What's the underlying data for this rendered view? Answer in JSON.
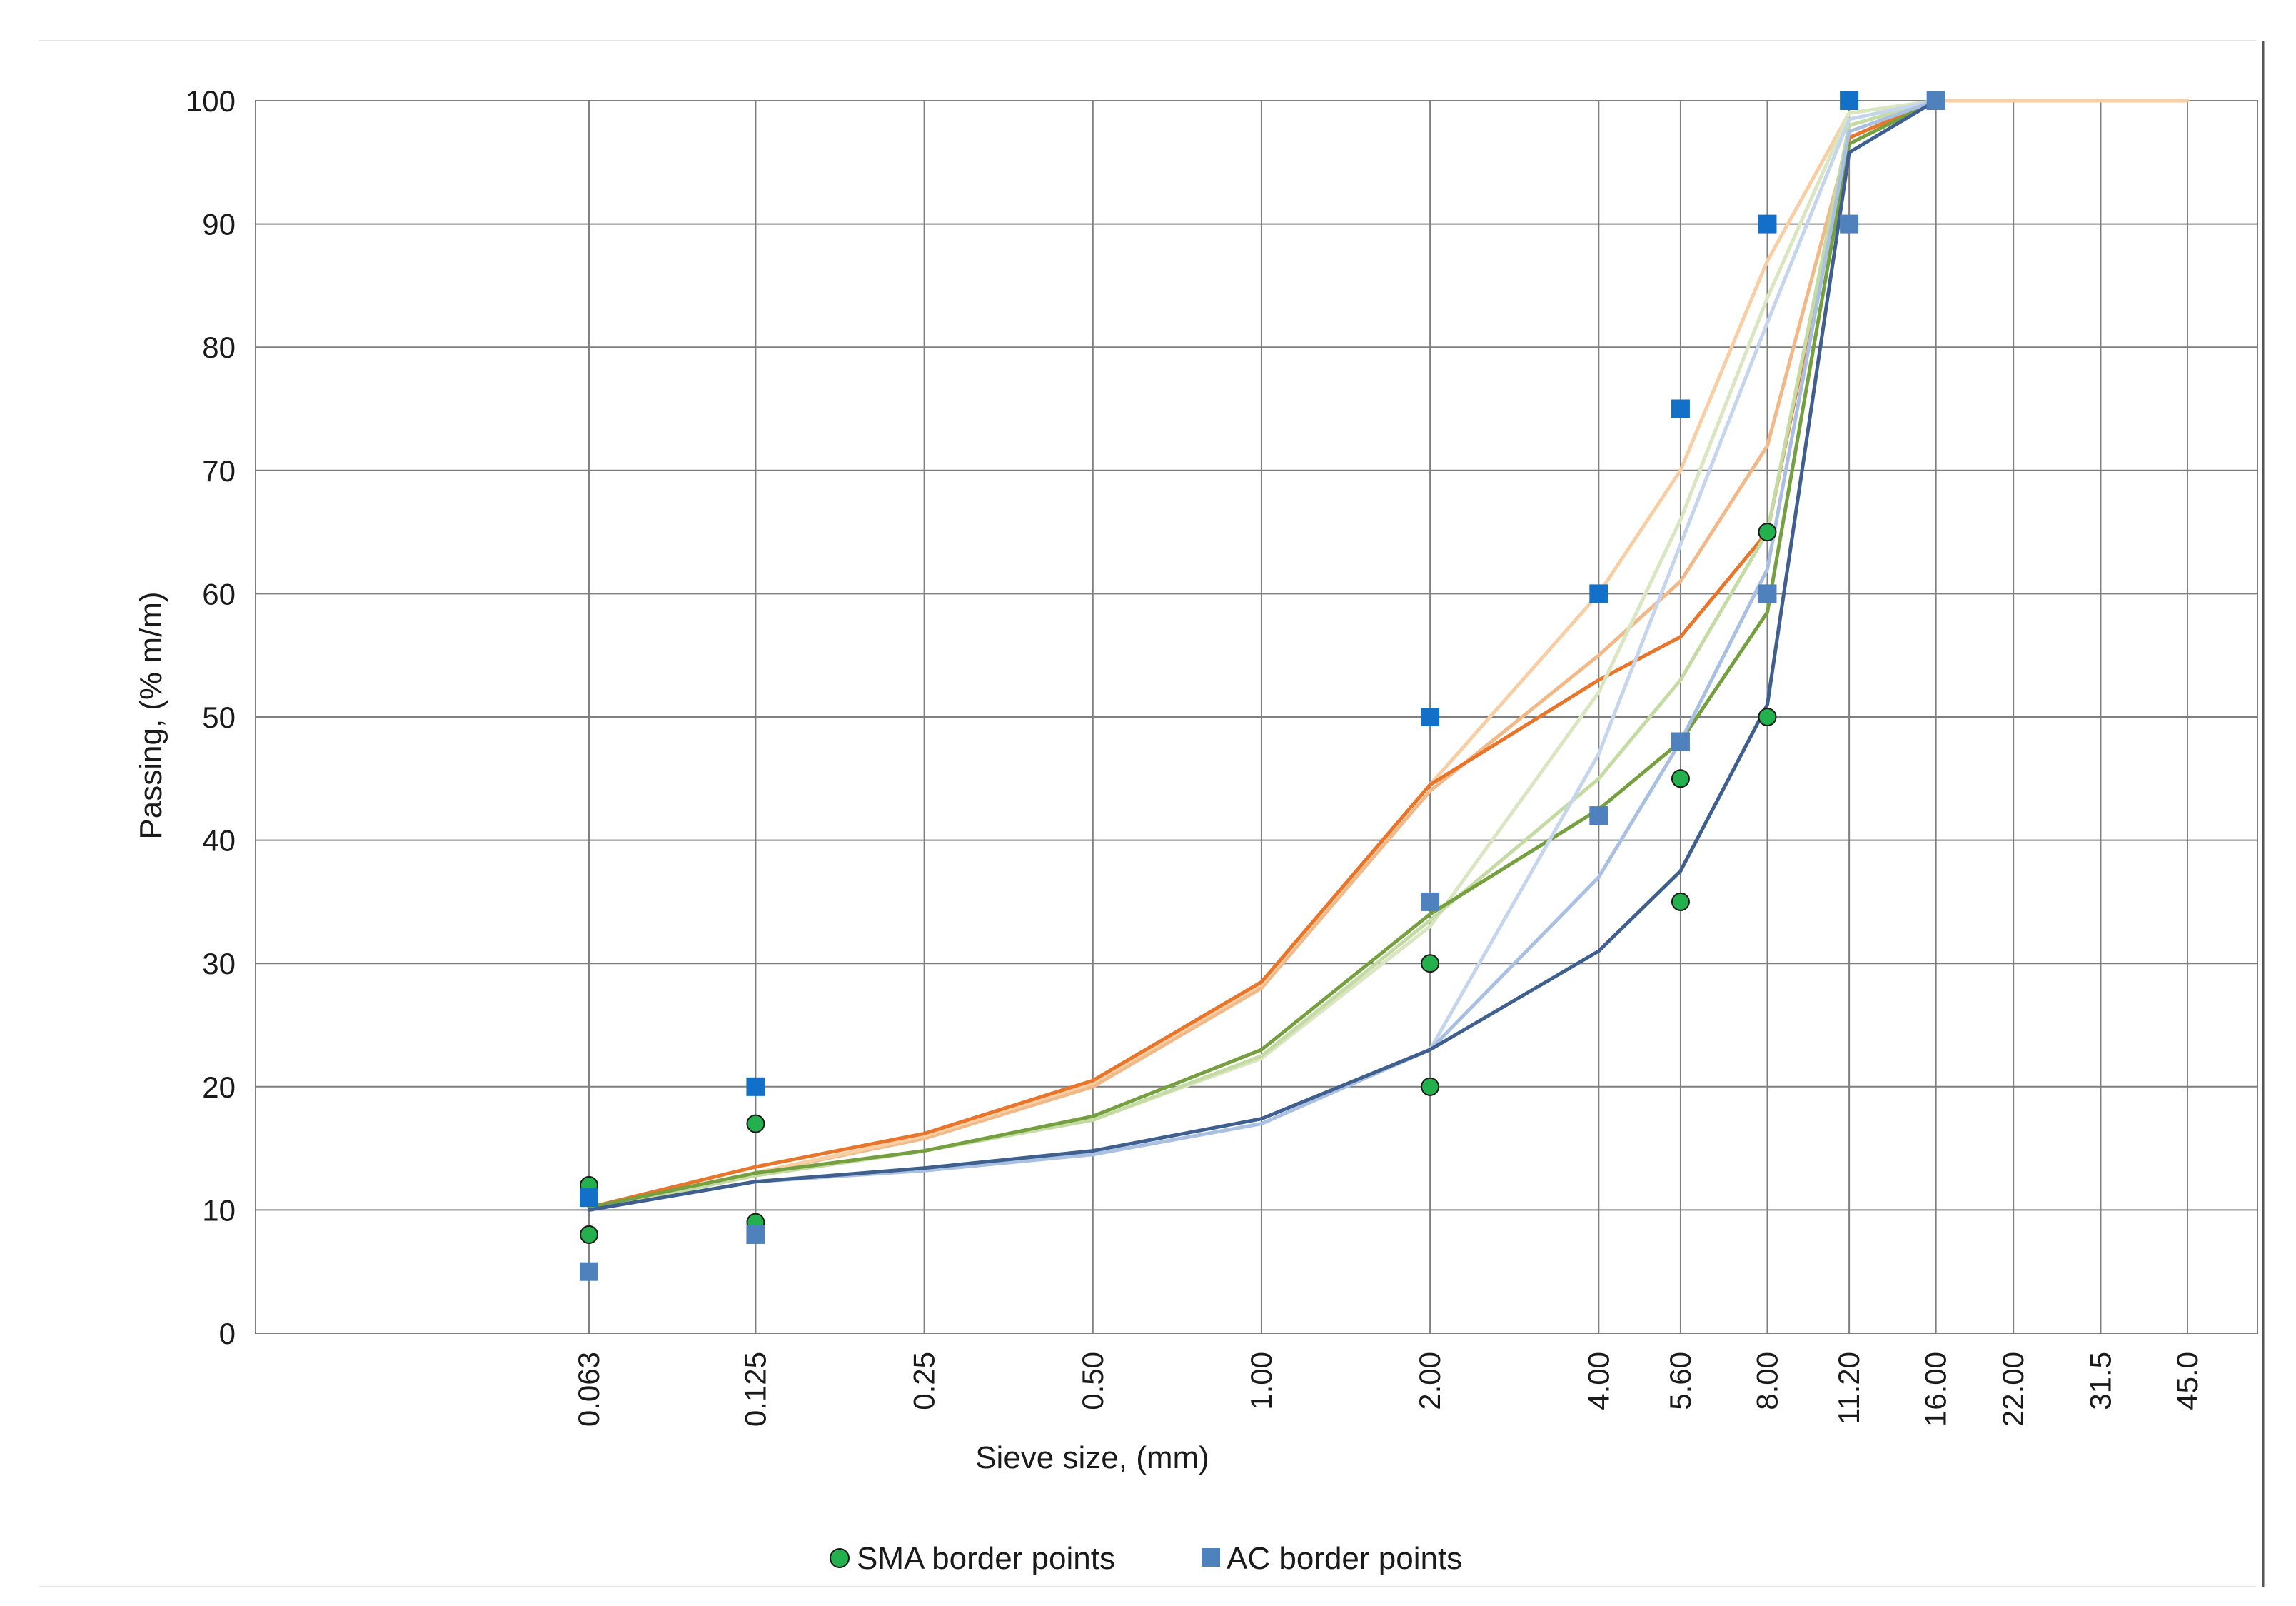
{
  "chart_data": {
    "type": "line",
    "title": "",
    "xlabel": "Sieve size, (mm)",
    "ylabel": "Passing, (% m/m)",
    "categories": [
      "0.063",
      "0.125",
      "0.25",
      "0.50",
      "1.00",
      "2.00",
      "4.00",
      "5.60",
      "8.00",
      "11.20",
      "16.00",
      "22.00",
      "31.5",
      "45.0"
    ],
    "x_scale": "log",
    "x_range": [
      0.016,
      60
    ],
    "ylim": [
      0,
      100
    ],
    "yticks": [
      0,
      10,
      20,
      30,
      40,
      50,
      60,
      70,
      80,
      90,
      100
    ],
    "grid": true,
    "legend": "bottom",
    "legend_entries": [
      "SMA border points",
      "AC border points"
    ],
    "colors": {
      "sma_marker": "#22b14c",
      "ac_marker_bright": "#1270c9",
      "ac_marker_steel": "#4f81bd",
      "grid": "#7f7f7f",
      "axis": "#7f7f7f"
    },
    "series": [
      {
        "color": "#f2b988",
        "x": [
          0.063,
          0.125,
          0.25,
          0.5,
          1,
          2,
          4,
          5.6,
          8,
          11.2,
          16,
          22,
          31.5,
          45
        ],
        "y": [
          10,
          13,
          15.8,
          20,
          28,
          44,
          55,
          61,
          72,
          97,
          100,
          100,
          100,
          100
        ]
      },
      {
        "color": "#f8cfa5",
        "x": [
          0.063,
          0.125,
          0.25,
          0.5,
          1,
          2,
          4,
          5.6,
          8,
          11.2,
          16,
          22,
          31.5,
          45
        ],
        "y": [
          10,
          13,
          16,
          20.3,
          28.3,
          44.5,
          60,
          70,
          87,
          99,
          100,
          100,
          100,
          100
        ]
      },
      {
        "color": "#e8752a",
        "x": [
          0.063,
          0.125,
          0.25,
          0.5,
          1,
          2,
          4,
          5.6,
          8,
          11.2,
          16
        ],
        "y": [
          10.2,
          13.5,
          16.2,
          20.5,
          28.5,
          44.5,
          53,
          56.5,
          65,
          97,
          100
        ]
      },
      {
        "color": "#d9e6c1",
        "x": [
          0.063,
          0.125,
          0.25,
          0.5,
          1,
          2,
          4,
          5.6,
          8,
          11.2,
          16
        ],
        "y": [
          10,
          12.8,
          14.8,
          17.3,
          22.3,
          33,
          52,
          66,
          84,
          99,
          100
        ]
      },
      {
        "color": "#c5dba4",
        "x": [
          0.063,
          0.125,
          0.25,
          0.5,
          1,
          2,
          4,
          5.6,
          8,
          11.2,
          16
        ],
        "y": [
          10,
          12.8,
          14.8,
          17.3,
          22.5,
          33.5,
          45,
          53,
          65,
          98,
          100
        ]
      },
      {
        "color": "#76a040",
        "x": [
          0.063,
          0.125,
          0.25,
          0.5,
          1,
          2,
          4,
          5.6,
          8,
          11.2,
          16
        ],
        "y": [
          10.2,
          13,
          14.8,
          17.6,
          23,
          34,
          42.5,
          48,
          58.5,
          96.5,
          100
        ]
      },
      {
        "color": "#c5d6ec",
        "x": [
          0.063,
          0.125,
          0.25,
          0.5,
          1,
          2,
          4,
          5.6,
          8,
          11.2,
          16
        ],
        "y": [
          10,
          12.3,
          13.2,
          14.5,
          17,
          23,
          47,
          64,
          82,
          98.5,
          100
        ]
      },
      {
        "color": "#a9c0e2",
        "x": [
          0.063,
          0.125,
          0.25,
          0.5,
          1,
          2,
          4,
          5.6,
          8,
          11.2,
          16
        ],
        "y": [
          10,
          12.3,
          13.2,
          14.5,
          17,
          23,
          37,
          48,
          62,
          97.5,
          100
        ]
      },
      {
        "color": "#3f5f8f",
        "x": [
          0.063,
          0.125,
          0.25,
          0.5,
          1,
          2,
          4,
          5.6,
          8,
          11.2,
          16
        ],
        "y": [
          10,
          12.3,
          13.4,
          14.8,
          17.4,
          23,
          31,
          37.5,
          51,
          95.8,
          100
        ]
      }
    ],
    "points": [
      {
        "name": "SMA border points",
        "marker": "circle",
        "color": "#22b14c",
        "x": [
          0.063,
          0.063,
          0.125,
          0.125,
          2,
          2,
          5.6,
          5.6,
          8,
          8
        ],
        "y": [
          12,
          8,
          17,
          9,
          30,
          20,
          45,
          35,
          65,
          50
        ]
      },
      {
        "name": "AC border points",
        "marker": "square",
        "color": "#4f81bd",
        "x": [
          0.063,
          0.125,
          2,
          4,
          5.6,
          8,
          11.2,
          16
        ],
        "y": [
          5,
          8,
          35,
          42,
          48,
          60,
          90,
          100
        ]
      },
      {
        "name": "AC border points",
        "marker": "square",
        "color": "#1270c9",
        "x": [
          0.063,
          0.125,
          2,
          4,
          5.6,
          8,
          11.2
        ],
        "y": [
          11,
          20,
          50,
          60,
          75,
          90,
          100
        ]
      }
    ]
  }
}
